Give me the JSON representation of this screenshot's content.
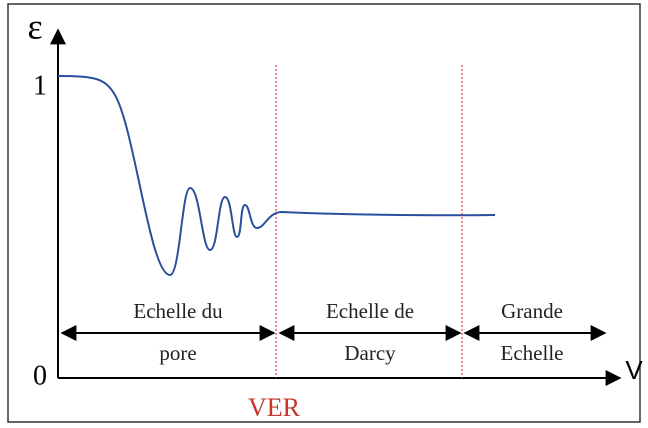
{
  "axes": {
    "y_label": "ε",
    "x_label": "V",
    "y_top": "1",
    "y_bottom": "0"
  },
  "regions": [
    {
      "lines": [
        "Echelle du",
        "pore"
      ]
    },
    {
      "lines": [
        "Echelle de",
        "Darcy"
      ]
    },
    {
      "lines": [
        "Grande",
        "Echelle"
      ]
    }
  ],
  "marker": "VER"
}
